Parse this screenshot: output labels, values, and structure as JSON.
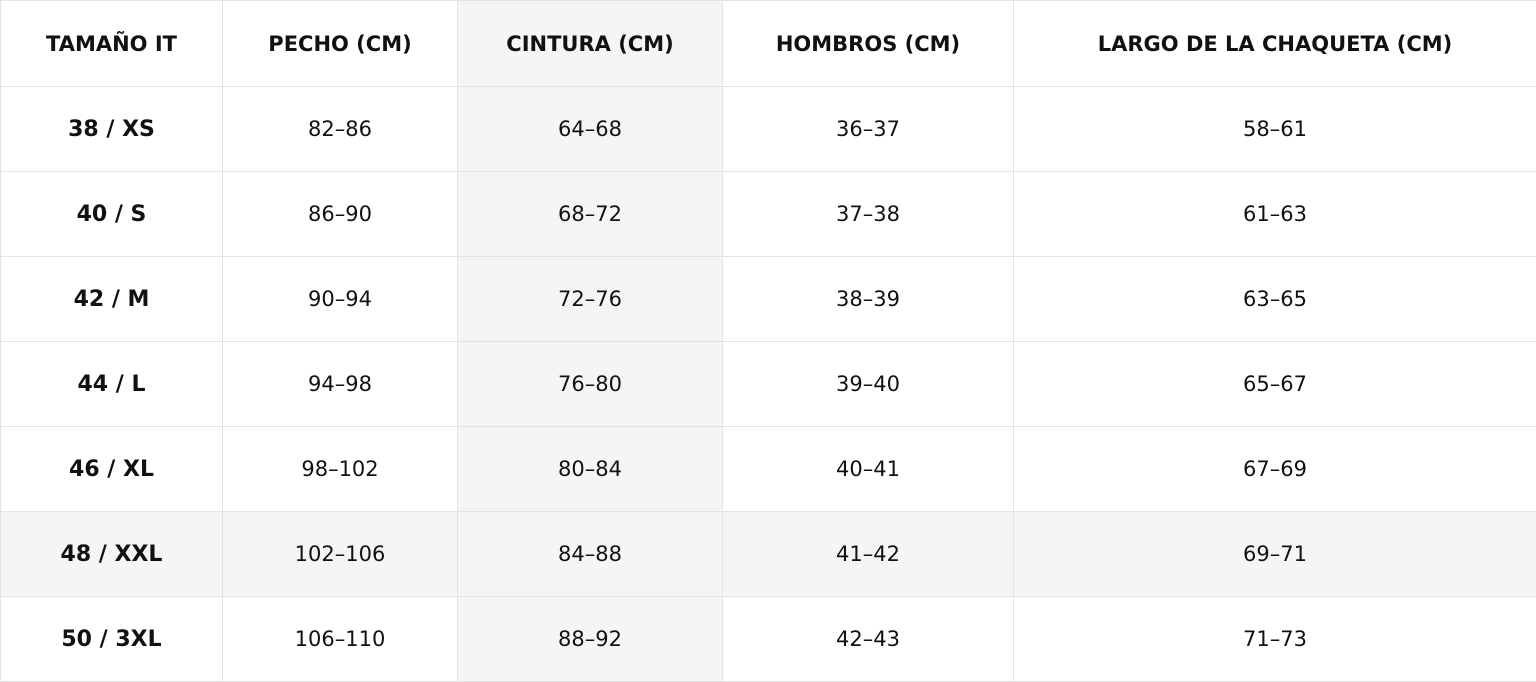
{
  "table": {
    "header": [
      "TAMAÑO IT",
      "PECHO (CM)",
      "CINTURA (CM)",
      "HOMBROS (CM)",
      "LARGO DE LA CHAQUETA (CM)"
    ],
    "rows": [
      [
        "38 / XS",
        "82–86",
        "64–68",
        "36–37",
        "58–61"
      ],
      [
        "40 / S",
        "86–90",
        "68–72",
        "37–38",
        "61–63"
      ],
      [
        "42 / M",
        "90–94",
        "72–76",
        "38–39",
        "63–65"
      ],
      [
        "44 / L",
        "94–98",
        "76–80",
        "39–40",
        "65–67"
      ],
      [
        "46 / XL",
        "98–102",
        "80–84",
        "40–41",
        "67–69"
      ],
      [
        "48 / XXL",
        "102–106",
        "84–88",
        "41–42",
        "69–71"
      ],
      [
        "50 / 3XL",
        "106–110",
        "88–92",
        "42–43",
        "71–73"
      ]
    ]
  }
}
